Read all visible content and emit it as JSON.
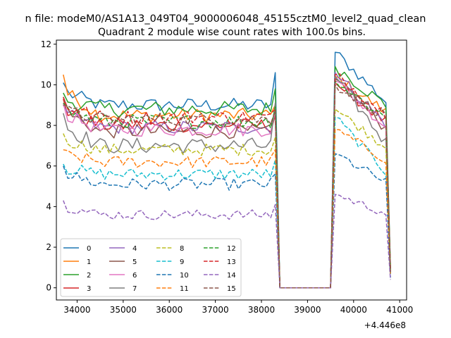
{
  "chart_data": {
    "type": "line",
    "suptitle": "n file: modeM0/AS1A13_049T04_9000006048_45155cztM0_level2_quad_clean",
    "title": "Quadrant 2 module wise count rates with 100.0s bins.",
    "xlabel": "",
    "ylabel": "",
    "x_offset_label": "+4.446e8",
    "xlim": [
      33550,
      41150
    ],
    "ylim": [
      -0.6,
      12.2
    ],
    "xticks": [
      34000,
      35000,
      36000,
      37000,
      38000,
      39000,
      40000,
      41000
    ],
    "yticks": [
      0,
      2,
      4,
      6,
      8,
      10,
      12
    ],
    "legend_loc": "lower-left",
    "bin_width": 100,
    "segments": [
      {
        "start": 33700,
        "n": 47
      },
      {
        "start": 38400,
        "n": 12,
        "zero": true
      },
      {
        "start": 39600,
        "n": 13
      }
    ],
    "series": [
      {
        "name": "0",
        "color": "#1f77b4",
        "dash": "solid",
        "level": 9.0,
        "spread": 0.35,
        "start": 10.1,
        "spike": 10.6,
        "post": 11.6,
        "end": 1.0
      },
      {
        "name": "1",
        "color": "#ff7f0e",
        "dash": "solid",
        "level": 8.5,
        "spread": 0.35,
        "start": 10.5,
        "spike": 9.0,
        "post": 10.4,
        "end": 0.9
      },
      {
        "name": "2",
        "color": "#2ca02c",
        "dash": "solid",
        "level": 8.8,
        "spread": 0.4,
        "start": 9.6,
        "spike": 9.8,
        "post": 10.9,
        "end": 0.9
      },
      {
        "name": "3",
        "color": "#d62728",
        "dash": "solid",
        "level": 8.0,
        "spread": 0.35,
        "start": 9.3,
        "spike": 8.5,
        "post": 10.1,
        "end": 0.8
      },
      {
        "name": "4",
        "color": "#9467bd",
        "dash": "solid",
        "level": 7.9,
        "spread": 0.35,
        "start": 9.0,
        "spike": 8.8,
        "post": 10.6,
        "end": 0.8
      },
      {
        "name": "5",
        "color": "#8c564b",
        "dash": "solid",
        "level": 7.7,
        "spread": 0.35,
        "start": 9.4,
        "spike": 8.6,
        "post": 10.3,
        "end": 0.8
      },
      {
        "name": "6",
        "color": "#e377c2",
        "dash": "solid",
        "level": 7.8,
        "spread": 0.35,
        "start": 9.1,
        "spike": 8.7,
        "post": 10.2,
        "end": 0.8
      },
      {
        "name": "7",
        "color": "#7f7f7f",
        "dash": "solid",
        "level": 7.0,
        "spread": 0.4,
        "start": 8.6,
        "spike": 9.1,
        "post": 10.4,
        "end": 0.7
      },
      {
        "name": "8",
        "color": "#bcbd22",
        "dash": "dashed",
        "level": 6.8,
        "spread": 0.3,
        "start": 7.6,
        "spike": 7.4,
        "post": 8.8,
        "end": 0.7
      },
      {
        "name": "9",
        "color": "#17becf",
        "dash": "dashed",
        "level": 5.6,
        "spread": 0.3,
        "start": 6.1,
        "spike": 6.3,
        "post": 8.4,
        "end": 0.6
      },
      {
        "name": "10",
        "color": "#1f77b4",
        "dash": "dashed",
        "level": 5.1,
        "spread": 0.3,
        "start": 6.0,
        "spike": 5.6,
        "post": 6.6,
        "end": 0.5
      },
      {
        "name": "11",
        "color": "#ff7f0e",
        "dash": "dashed",
        "level": 6.2,
        "spread": 0.3,
        "start": 6.8,
        "spike": 6.8,
        "post": 7.8,
        "end": 0.7
      },
      {
        "name": "12",
        "color": "#2ca02c",
        "dash": "dashed",
        "level": 8.2,
        "spread": 0.35,
        "start": 9.1,
        "spike": 8.9,
        "post": 10.2,
        "end": 0.8
      },
      {
        "name": "13",
        "color": "#d62728",
        "dash": "dashed",
        "level": 8.4,
        "spread": 0.35,
        "start": 9.4,
        "spike": 8.8,
        "post": 10.5,
        "end": 0.8
      },
      {
        "name": "14",
        "color": "#9467bd",
        "dash": "dashed",
        "level": 3.6,
        "spread": 0.25,
        "start": 4.3,
        "spike": 4.1,
        "post": 4.6,
        "end": 0.4
      },
      {
        "name": "15",
        "color": "#8c564b",
        "dash": "dashed",
        "level": 8.3,
        "spread": 0.35,
        "start": 9.0,
        "spike": 8.7,
        "post": 10.0,
        "end": 0.8
      }
    ]
  }
}
